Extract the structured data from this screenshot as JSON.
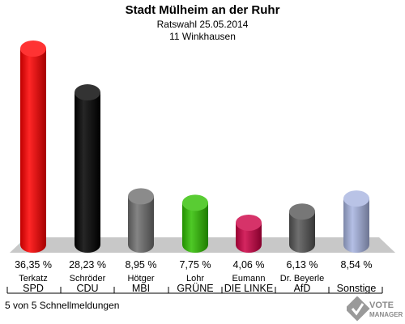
{
  "header": {
    "title": "Stadt Mülheim an der Ruhr",
    "subtitle": "Ratswahl 25.05.2014",
    "district": "11 Winkhausen"
  },
  "footer": {
    "status": "5 von 5 Schnellmeldungen"
  },
  "logo": {
    "line1": "VOTE",
    "line2": "MANAGER"
  },
  "chart_data": {
    "type": "bar",
    "title": "Stadt Mülheim an der Ruhr",
    "subtitle": "Ratswahl 25.05.2014",
    "ylim": [
      0,
      40
    ],
    "categories": [
      "SPD",
      "CDU",
      "MBI",
      "GRÜNE",
      "DIE LINKE",
      "AfD",
      "Sonstige"
    ],
    "candidates": [
      "Terkatz",
      "Schröder",
      "Hötger",
      "Lohr",
      "Eumann",
      "Dr. Beyerle",
      ""
    ],
    "values": [
      36.35,
      28.23,
      8.95,
      7.75,
      4.06,
      6.13,
      8.54
    ],
    "value_labels": [
      "36,35 %",
      "28,23 %",
      "8,95 %",
      "7,75 %",
      "4,06 %",
      "6,13 %",
      "8,54 %"
    ],
    "colors": [
      "#ff0000",
      "#000000",
      "#6e6e6e",
      "#2fbf00",
      "#cc0044",
      "#555555",
      "#a7b4e0"
    ],
    "grid": false,
    "legend": "none"
  }
}
